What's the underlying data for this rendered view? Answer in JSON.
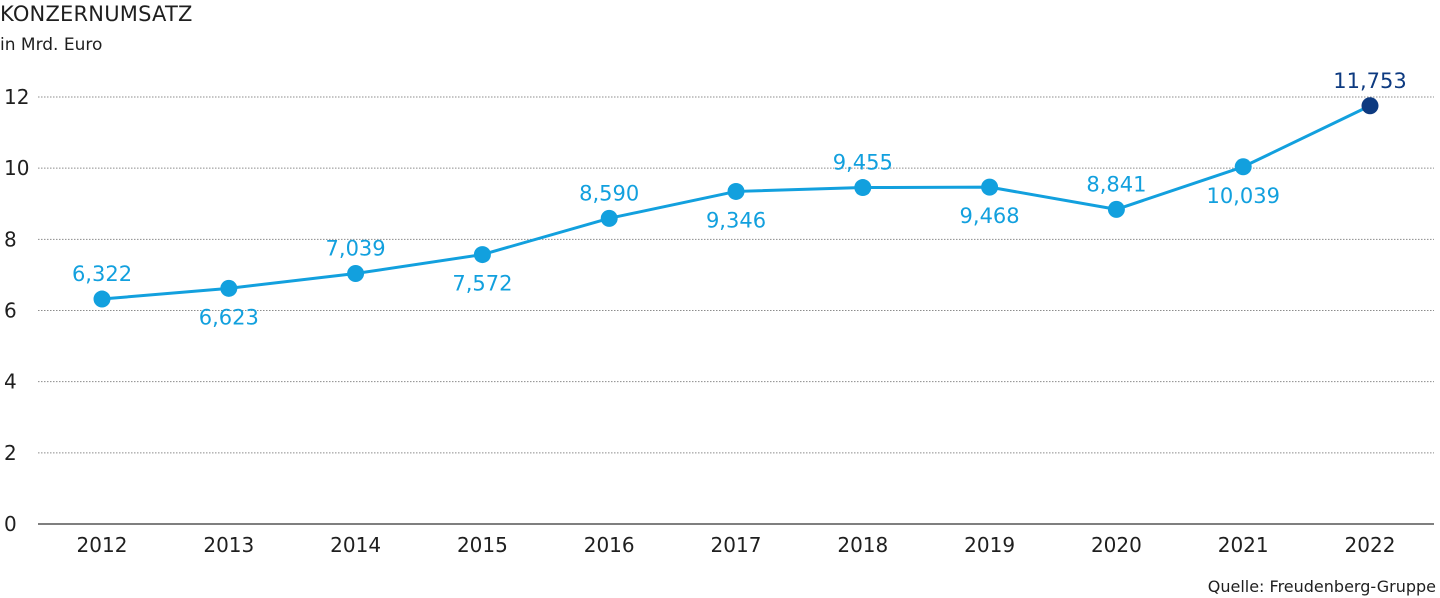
{
  "chart_data": {
    "type": "line",
    "title": "KONZERNUMSATZ",
    "subtitle": "in Mrd. Euro",
    "source": "Quelle: Freudenberg-Gruppe",
    "x": [
      "2012",
      "2013",
      "2014",
      "2015",
      "2016",
      "2017",
      "2018",
      "2019",
      "2020",
      "2021",
      "2022"
    ],
    "series": [
      {
        "values": [
          6.322,
          6.623,
          7.039,
          7.572,
          8.59,
          9.346,
          9.455,
          9.468,
          8.841,
          10.039,
          11.753
        ],
        "labels": [
          "6,322",
          "6,623",
          "7,039",
          "7,572",
          "8,590",
          "9,346",
          "9,455",
          "9,468",
          "8,841",
          "10,039",
          "11,753"
        ],
        "label_position": [
          "above",
          "below",
          "above",
          "below",
          "above",
          "below",
          "above",
          "below",
          "above",
          "below",
          "above"
        ]
      }
    ],
    "ylim": [
      0,
      12
    ],
    "yticks": [
      "0",
      "2",
      "4",
      "6",
      "8",
      "10",
      "12"
    ],
    "grid": true,
    "colors": {
      "line": "#12a0de",
      "highlight": "#0d3a80",
      "grid": "#8c8c8c",
      "axis": "#333333"
    }
  }
}
